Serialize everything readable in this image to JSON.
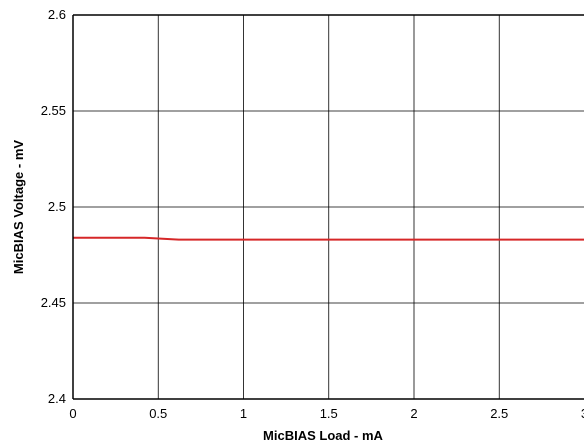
{
  "chart_data": {
    "type": "line",
    "title": "",
    "xlabel": "MicBIAS Load - mA",
    "ylabel": "MicBIAS Voltage - mV",
    "xlim": [
      0,
      3
    ],
    "ylim": [
      2.4,
      2.6
    ],
    "x_ticks": [
      0,
      0.5,
      1,
      1.5,
      2,
      2.5,
      3
    ],
    "x_tick_labels": [
      "0",
      "0.5",
      "1",
      "1.5",
      "2",
      "2.5",
      "3"
    ],
    "y_ticks": [
      2.4,
      2.45,
      2.5,
      2.55,
      2.6
    ],
    "y_tick_labels": [
      "2.4",
      "2.45",
      "2.5",
      "2.55",
      "2.6"
    ],
    "grid": true,
    "series": [
      {
        "color": "#d62728",
        "x": [
          0,
          0.42,
          0.62,
          1,
          1.5,
          2,
          2.5,
          3
        ],
        "y": [
          2.484,
          2.484,
          2.483,
          2.483,
          2.483,
          2.483,
          2.483,
          2.483
        ]
      }
    ]
  }
}
